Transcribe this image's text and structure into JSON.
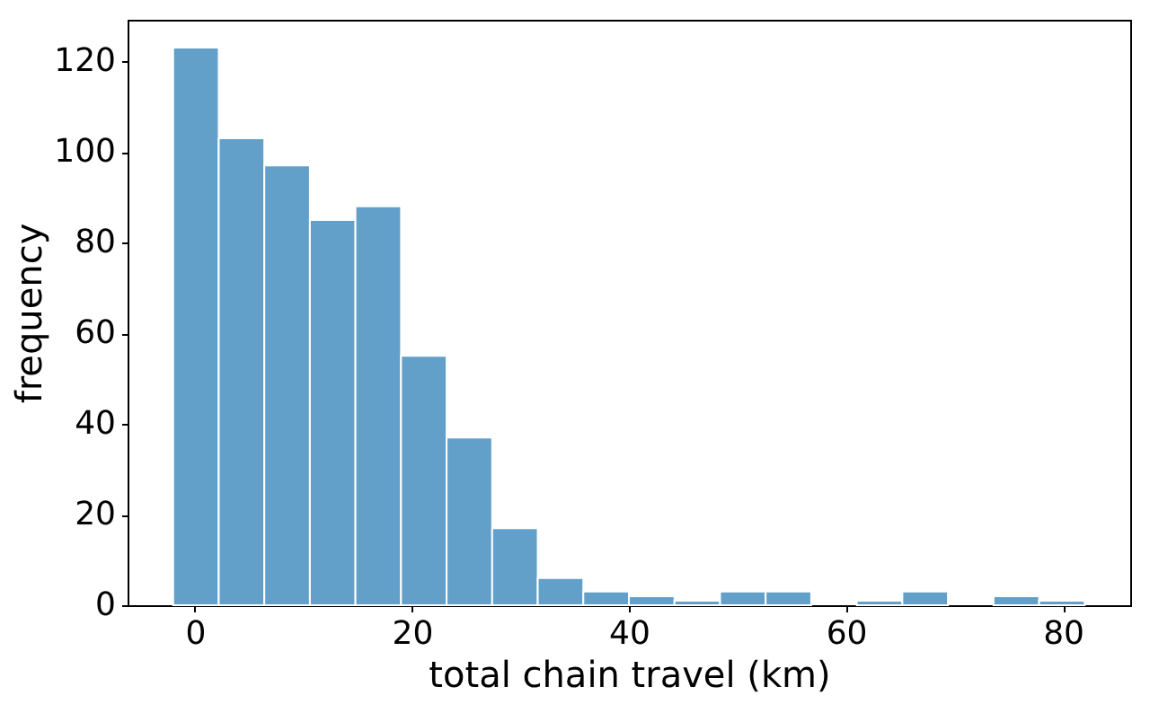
{
  "chart_data": {
    "type": "histogram",
    "xlabel": "total chain travel (km)",
    "ylabel": "frequency",
    "color": "#62a0ca",
    "bins": [
      -2,
      2.2,
      6.4,
      10.6,
      14.8,
      19,
      23.2,
      27.4,
      31.6,
      35.8,
      40,
      44.2,
      48.4,
      52.6,
      56.8,
      61,
      65.2,
      69.4,
      73.6,
      77.8,
      82
    ],
    "values": [
      123,
      103,
      97,
      85,
      88,
      55,
      37,
      17,
      6,
      3,
      2,
      1,
      3,
      3,
      0,
      1,
      3,
      0,
      2,
      1
    ],
    "xlim": [
      -6.2,
      86.2
    ],
    "ylim": [
      0,
      129.15
    ],
    "xticks": [
      0,
      20,
      40,
      60,
      80
    ],
    "yticks": [
      0,
      20,
      40,
      60,
      80,
      100,
      120
    ],
    "grid": false
  }
}
